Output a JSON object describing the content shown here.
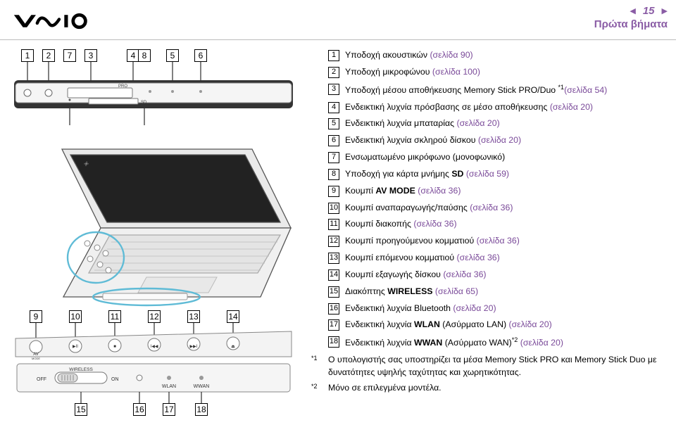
{
  "page": {
    "number": "15",
    "section": "Πρώτα βήματα"
  },
  "legend": {
    "items": [
      {
        "n": "1",
        "text_pre": "Υποδοχή ακουστικών ",
        "link": "(σελίδα 90)"
      },
      {
        "n": "2",
        "text_pre": "Υποδοχή μικροφώνου ",
        "link": "(σελίδα 100)"
      },
      {
        "n": "3",
        "text_pre": "Υποδοχή μέσου αποθήκευσης Memory Stick PRO/Duo",
        "sup": "*1",
        "text_post": " ",
        "link": "(σελίδα 54)"
      },
      {
        "n": "4",
        "text_pre": "Ενδεικτική λυχνία πρόσβασης σε μέσο αποθήκευσης ",
        "link": "(σελίδα 20)"
      },
      {
        "n": "5",
        "text_pre": "Ενδεικτική λυχνία μπαταρίας ",
        "link": "(σελίδα 20)"
      },
      {
        "n": "6",
        "text_pre": "Ενδεικτική λυχνία σκληρού δίσκου ",
        "link": "(σελίδα 20)"
      },
      {
        "n": "7",
        "text_pre": "Ενσωματωμένο μικρόφωνο (μονοφωνικό)"
      },
      {
        "n": "8",
        "text_pre": "Υποδοχή για κάρτα μνήμης ",
        "bold": "SD",
        "text_post": " ",
        "link": "(σελίδα 59)"
      },
      {
        "n": "9",
        "text_pre": "Κουμπί ",
        "bold": "AV MODE",
        "text_post": " ",
        "link": "(σελίδα 36)"
      },
      {
        "n": "10",
        "text_pre": "Κουμπί αναπαραγωγής/παύσης ",
        "link": "(σελίδα 36)"
      },
      {
        "n": "11",
        "text_pre": "Κουμπί διακοπής ",
        "link": "(σελίδα 36)"
      },
      {
        "n": "12",
        "text_pre": "Κουμπί προηγούμενου κομματιού ",
        "link": "(σελίδα 36)"
      },
      {
        "n": "13",
        "text_pre": "Κουμπί επόμενου κομματιού ",
        "link": "(σελίδα 36)"
      },
      {
        "n": "14",
        "text_pre": "Κουμπί εξαγωγής δίσκου ",
        "link": "(σελίδα 36)"
      },
      {
        "n": "15",
        "text_pre": "Διακόπτης ",
        "bold": "WIRELESS",
        "text_post": " ",
        "link": "(σελίδα 65)"
      },
      {
        "n": "16",
        "text_pre": "Ενδεικτική λυχνία Bluetooth ",
        "link": "(σελίδα 20)"
      },
      {
        "n": "17",
        "text_pre": "Ενδεικτική λυχνία ",
        "bold": "WLAN",
        "text_post": " (Ασύρματο LAN) ",
        "link": "(σελίδα 20)"
      },
      {
        "n": "18",
        "text_pre": "Ενδεικτική λυχνία ",
        "bold": "WWAN",
        "text_post": " (Ασύρματο WAN)",
        "sup": "*2",
        "text_after_sup": " ",
        "link": "(σελίδα 20)"
      }
    ],
    "footnotes": [
      {
        "mark": "*1",
        "text": "Ο υπολογιστής σας υποστηρίζει τα μέσα Memory Stick PRO και Memory Stick Duo με δυνατότητες υψηλής ταχύτητας και χωρητικότητας."
      },
      {
        "mark": "*2",
        "text": "Μόνο σε επιλεγμένα μοντέλα."
      }
    ]
  },
  "diagram_labels": {
    "fig1": [
      "1",
      "2",
      "3",
      "4",
      "5",
      "6",
      "7",
      "8"
    ],
    "fig2": [
      "9",
      "10",
      "11",
      "12",
      "13",
      "14",
      "15",
      "16",
      "17",
      "18"
    ],
    "pro": "PRO",
    "sd": "SD",
    "switch_off": "OFF",
    "switch_wireless": "WIRELESS",
    "switch_on": "ON",
    "wlan": "WLAN",
    "wwan": "WWAN",
    "av": "AV",
    "mode": "MODE"
  },
  "colors": {
    "accent": "#8a5ca5",
    "link": "#7a4a99",
    "diagram_stroke": "#555555",
    "diagram_fill": "#f3f3f3",
    "highlight_stroke": "#5fbbd6",
    "dark": "#2a2a2a"
  }
}
